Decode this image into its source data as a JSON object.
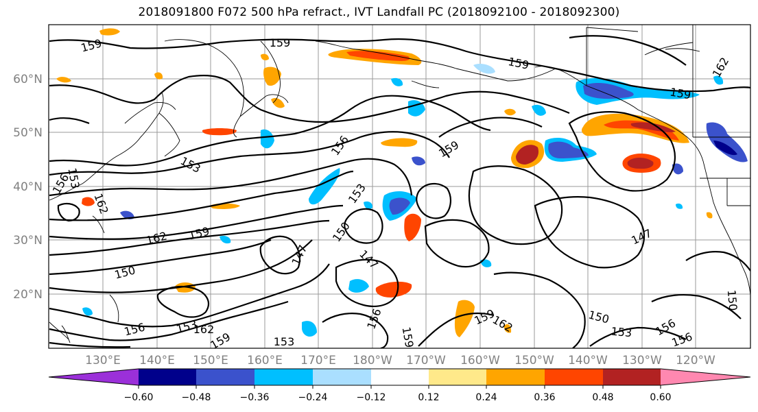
{
  "title": "2018091800 F072 500 hPa refract., IVT Landfall PC (2018092100 - 2018092300)",
  "map": {
    "lat_labels": [
      "60°N",
      "50°N",
      "40°N",
      "30°N",
      "20°N"
    ],
    "lon_labels": [
      "130°E",
      "140°E",
      "150°E",
      "160°E",
      "170°E",
      "180°W",
      "170°W",
      "160°W",
      "150°W",
      "140°W",
      "130°W",
      "120°W"
    ],
    "contour_labels": [
      "159",
      "159",
      "159",
      "159",
      "156",
      "153",
      "159",
      "153",
      "162",
      "156",
      "153",
      "150",
      "162",
      "159",
      "150",
      "147",
      "147",
      "150",
      "156",
      "162",
      "159",
      "153",
      "156",
      "159",
      "153",
      "156",
      "153",
      "150",
      "147",
      "162",
      "156",
      "162",
      "159"
    ]
  },
  "colorbar": {
    "colors": [
      "#9b30d9",
      "#00008b",
      "#3b52cc",
      "#00bfff",
      "#aadfff",
      "#ffffff",
      "#ffe98a",
      "#ffa500",
      "#ff4500",
      "#b22222",
      "#ff88b0"
    ],
    "tick_labels": [
      "−0.60",
      "−0.48",
      "−0.36",
      "−0.24",
      "−0.12",
      "0.12",
      "0.24",
      "0.36",
      "0.48",
      "0.60"
    ]
  },
  "shading_colors": {
    "pos_light": "#ffe98a",
    "pos_med": "#ffa500",
    "pos_strong": "#ff4500",
    "pos_max": "#b22222",
    "neg_light": "#aadfff",
    "neg_med": "#00bfff",
    "neg_strong": "#3b52cc",
    "neg_max": "#00008b"
  }
}
